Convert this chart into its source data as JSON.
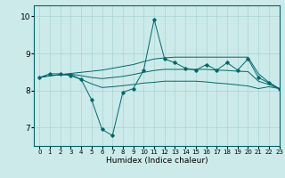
{
  "xlabel": "Humidex (Indice chaleur)",
  "bg_color": "#cceaea",
  "line_color": "#006868",
  "grid_color": "#aad4d4",
  "xlim": [
    -0.5,
    23
  ],
  "ylim": [
    6.5,
    10.3
  ],
  "yticks": [
    7,
    8,
    9,
    10
  ],
  "xticks": [
    0,
    1,
    2,
    3,
    4,
    5,
    6,
    7,
    8,
    9,
    10,
    11,
    12,
    13,
    14,
    15,
    16,
    17,
    18,
    19,
    20,
    21,
    22,
    23
  ],
  "zigzag_y": [
    8.35,
    8.45,
    8.45,
    8.4,
    8.3,
    7.75,
    6.95,
    6.78,
    7.95,
    8.05,
    8.55,
    9.92,
    8.85,
    8.75,
    8.6,
    8.55,
    8.7,
    8.55,
    8.75,
    8.55,
    8.85,
    8.35,
    8.2,
    8.05
  ],
  "upper_env_y": [
    8.35,
    8.4,
    8.43,
    8.46,
    8.49,
    8.52,
    8.55,
    8.6,
    8.65,
    8.7,
    8.78,
    8.85,
    8.88,
    8.9,
    8.9,
    8.9,
    8.9,
    8.9,
    8.9,
    8.9,
    8.9,
    8.45,
    8.22,
    8.05
  ],
  "lower_env_y": [
    8.35,
    8.4,
    8.42,
    8.43,
    8.3,
    8.18,
    8.08,
    8.1,
    8.13,
    8.16,
    8.2,
    8.22,
    8.25,
    8.25,
    8.25,
    8.25,
    8.23,
    8.2,
    8.18,
    8.15,
    8.12,
    8.05,
    8.1,
    8.05
  ],
  "mid_line_y": [
    8.35,
    8.4,
    8.42,
    8.44,
    8.4,
    8.35,
    8.32,
    8.35,
    8.38,
    8.43,
    8.49,
    8.54,
    8.57,
    8.57,
    8.57,
    8.57,
    8.57,
    8.55,
    8.54,
    8.52,
    8.51,
    8.25,
    8.16,
    8.05
  ]
}
